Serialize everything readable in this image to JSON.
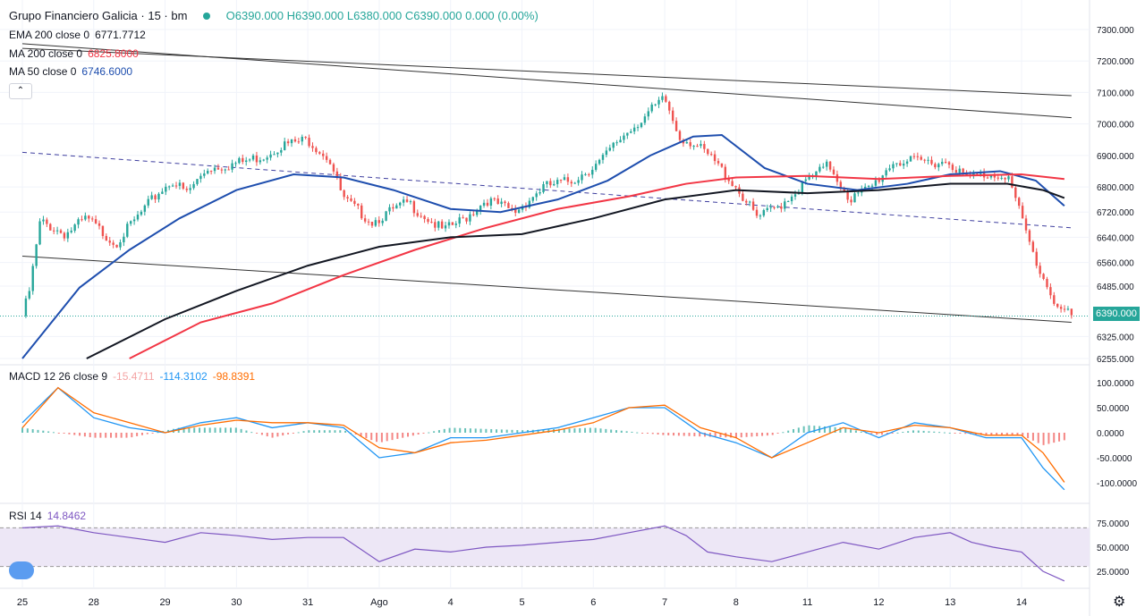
{
  "header": {
    "symbol": "Grupo Financiero Galicia · 15 · bm",
    "ohlc": "O6390.000 H6390.000 L6380.000 C6390.000 0.000 (0.00%)"
  },
  "legends": {
    "ema200": {
      "label": "EMA 200 close 0",
      "value": "6771.7712",
      "color": "#131722"
    },
    "ma200": {
      "label": "MA 200 close 0",
      "value": "6825.8000",
      "color": "#f23645"
    },
    "ma50": {
      "label": "MA 50 close 0",
      "value": "6746.6000",
      "color": "#1e4eae"
    },
    "macd": {
      "label": "MACD 12 26 close 9",
      "hist": "-15.4711",
      "macd": "-114.3102",
      "signal": "-98.8391"
    },
    "rsi": {
      "label": "RSI 14",
      "value": "14.8462"
    }
  },
  "controls": {
    "collapse": "⌃",
    "settings": "⚙"
  },
  "last_price": "6390.000",
  "colors": {
    "up": "#26a69a",
    "down": "#ef5350",
    "macd": "#2196f3",
    "signal": "#ff6d00",
    "rsi": "#7e57c2"
  },
  "chart_data": [
    {
      "type": "candlestick",
      "title": "Grupo Financiero Galicia · 15 · bm",
      "x_ticks": [
        "25",
        "28",
        "29",
        "30",
        "31",
        "Ago",
        "4",
        "5",
        "6",
        "7",
        "8",
        "11",
        "12",
        "13",
        "14"
      ],
      "y_ticks": [
        "7300.000",
        "7200.000",
        "7100.000",
        "7000.000",
        "6900.000",
        "6800.000",
        "6720.000",
        "6640.000",
        "6560.000",
        "6485.000",
        "6325.000",
        "6255.000"
      ],
      "close_path": [
        [
          0,
          6390
        ],
        [
          0.1,
          6470
        ],
        [
          0.25,
          6690
        ],
        [
          0.6,
          6650
        ],
        [
          0.9,
          6700
        ],
        [
          1.1,
          6660
        ],
        [
          1.3,
          6620
        ],
        [
          1.6,
          6700
        ],
        [
          1.9,
          6780
        ],
        [
          2.1,
          6820
        ],
        [
          2.3,
          6780
        ],
        [
          2.6,
          6860
        ],
        [
          2.9,
          6870
        ],
        [
          3.1,
          6880
        ],
        [
          3.4,
          6900
        ],
        [
          3.6,
          6930
        ],
        [
          4.0,
          6950
        ],
        [
          4.3,
          6890
        ],
        [
          4.5,
          6760
        ],
        [
          4.9,
          6690
        ],
        [
          5.4,
          6750
        ],
        [
          5.9,
          6660
        ],
        [
          6.2,
          6700
        ],
        [
          6.5,
          6760
        ],
        [
          6.9,
          6720
        ],
        [
          7.3,
          6800
        ],
        [
          7.7,
          6820
        ],
        [
          8.1,
          6880
        ],
        [
          8.4,
          6960
        ],
        [
          8.8,
          7040
        ],
        [
          9.0,
          7080
        ],
        [
          9.2,
          6960
        ],
        [
          9.4,
          6940
        ],
        [
          9.7,
          6880
        ],
        [
          10.0,
          6800
        ],
        [
          10.3,
          6700
        ],
        [
          10.6,
          6740
        ],
        [
          11.0,
          6820
        ],
        [
          11.3,
          6870
        ],
        [
          11.6,
          6760
        ],
        [
          11.9,
          6800
        ],
        [
          12.2,
          6880
        ],
        [
          12.6,
          6880
        ],
        [
          13.0,
          6880
        ],
        [
          13.2,
          6830
        ],
        [
          13.5,
          6840
        ],
        [
          13.8,
          6840
        ],
        [
          14.0,
          6700
        ],
        [
          14.2,
          6560
        ],
        [
          14.5,
          6420
        ],
        [
          14.7,
          6390
        ]
      ],
      "moving_averages": [
        {
          "name": "MA 50 close 0",
          "color": "#1e4eae",
          "points": [
            [
              0,
              6255
            ],
            [
              0.8,
              6480
            ],
            [
              1.5,
              6600
            ],
            [
              2.2,
              6700
            ],
            [
              3.0,
              6790
            ],
            [
              3.8,
              6840
            ],
            [
              4.5,
              6830
            ],
            [
              5.2,
              6790
            ],
            [
              6.0,
              6730
            ],
            [
              6.7,
              6720
            ],
            [
              7.5,
              6760
            ],
            [
              8.2,
              6820
            ],
            [
              8.8,
              6900
            ],
            [
              9.4,
              6960
            ],
            [
              9.8,
              6965
            ],
            [
              10.4,
              6860
            ],
            [
              11.0,
              6810
            ],
            [
              11.7,
              6790
            ],
            [
              12.4,
              6810
            ],
            [
              13.0,
              6840
            ],
            [
              13.7,
              6850
            ],
            [
              14.2,
              6820
            ],
            [
              14.6,
              6740
            ]
          ]
        },
        {
          "name": "MA 200 close 0",
          "color": "#f23645",
          "points": [
            [
              1.5,
              6255
            ],
            [
              2.5,
              6370
            ],
            [
              3.5,
              6430
            ],
            [
              4.5,
              6520
            ],
            [
              5.5,
              6600
            ],
            [
              6.5,
              6670
            ],
            [
              7.5,
              6730
            ],
            [
              8.5,
              6770
            ],
            [
              9.3,
              6810
            ],
            [
              10.0,
              6830
            ],
            [
              11.0,
              6835
            ],
            [
              12.0,
              6825
            ],
            [
              13.0,
              6835
            ],
            [
              14.0,
              6840
            ],
            [
              14.6,
              6825
            ]
          ]
        },
        {
          "name": "EMA 200 close 0",
          "color": "#131722",
          "points": [
            [
              0.9,
              6255
            ],
            [
              2.0,
              6380
            ],
            [
              3.0,
              6470
            ],
            [
              4.0,
              6550
            ],
            [
              5.0,
              6610
            ],
            [
              6.0,
              6640
            ],
            [
              7.0,
              6650
            ],
            [
              8.0,
              6700
            ],
            [
              9.0,
              6760
            ],
            [
              10.0,
              6790
            ],
            [
              11.0,
              6780
            ],
            [
              12.0,
              6790
            ],
            [
              13.0,
              6810
            ],
            [
              13.8,
              6810
            ],
            [
              14.3,
              6790
            ],
            [
              14.6,
              6765
            ]
          ]
        }
      ],
      "trendlines": [
        {
          "style": "solid",
          "points": [
            [
              0,
              7240
            ],
            [
              14.7,
              7090
            ]
          ]
        },
        {
          "style": "solid",
          "points": [
            [
              0,
              7255
            ],
            [
              14.7,
              7020
            ]
          ]
        },
        {
          "style": "dashed",
          "points": [
            [
              0,
              6910
            ],
            [
              14.7,
              6670
            ]
          ]
        },
        {
          "style": "solid",
          "points": [
            [
              0,
              6580
            ],
            [
              14.7,
              6370
            ]
          ]
        }
      ]
    },
    {
      "type": "line",
      "title": "MACD 12 26 close 9",
      "y_ticks": [
        "100.0000",
        "50.0000",
        "0.0000",
        "-50.0000",
        "-100.0000"
      ],
      "series": [
        {
          "name": "MACD",
          "values": [
            [
              0,
              20
            ],
            [
              0.5,
              90
            ],
            [
              1,
              30
            ],
            [
              1.5,
              10
            ],
            [
              2,
              0
            ],
            [
              2.5,
              20
            ],
            [
              3,
              30
            ],
            [
              3.5,
              10
            ],
            [
              4,
              20
            ],
            [
              4.5,
              10
            ],
            [
              5,
              -50
            ],
            [
              5.5,
              -40
            ],
            [
              6,
              -10
            ],
            [
              6.5,
              -10
            ],
            [
              7,
              0
            ],
            [
              7.5,
              10
            ],
            [
              8,
              30
            ],
            [
              8.5,
              50
            ],
            [
              9,
              50
            ],
            [
              9.5,
              0
            ],
            [
              10,
              -20
            ],
            [
              10.5,
              -50
            ],
            [
              11,
              0
            ],
            [
              11.5,
              20
            ],
            [
              12,
              -10
            ],
            [
              12.5,
              20
            ],
            [
              13,
              10
            ],
            [
              13.5,
              -10
            ],
            [
              14,
              -10
            ],
            [
              14.3,
              -70
            ],
            [
              14.6,
              -114
            ]
          ]
        },
        {
          "name": "Signal",
          "values": [
            [
              0,
              10
            ],
            [
              0.5,
              90
            ],
            [
              1,
              40
            ],
            [
              1.5,
              20
            ],
            [
              2,
              0
            ],
            [
              2.5,
              15
            ],
            [
              3,
              25
            ],
            [
              3.5,
              20
            ],
            [
              4,
              20
            ],
            [
              4.5,
              15
            ],
            [
              5,
              -30
            ],
            [
              5.5,
              -40
            ],
            [
              6,
              -20
            ],
            [
              6.5,
              -15
            ],
            [
              7,
              -5
            ],
            [
              7.5,
              5
            ],
            [
              8,
              20
            ],
            [
              8.5,
              50
            ],
            [
              9,
              55
            ],
            [
              9.5,
              10
            ],
            [
              10,
              -10
            ],
            [
              10.5,
              -50
            ],
            [
              11,
              -20
            ],
            [
              11.5,
              10
            ],
            [
              12,
              0
            ],
            [
              12.5,
              15
            ],
            [
              13,
              10
            ],
            [
              13.5,
              -5
            ],
            [
              14,
              -5
            ],
            [
              14.3,
              -40
            ],
            [
              14.6,
              -99
            ]
          ]
        }
      ],
      "histogram": {
        "color_pos": "#26a69a",
        "color_neg": "#ef5350",
        "values": [
          [
            0,
            10
          ],
          [
            1,
            -10
          ],
          [
            1.5,
            -10
          ],
          [
            2.2,
            10
          ],
          [
            3,
            10
          ],
          [
            3.5,
            -10
          ],
          [
            4,
            5
          ],
          [
            4.5,
            5
          ],
          [
            5,
            -20
          ],
          [
            5.5,
            -5
          ],
          [
            6,
            10
          ],
          [
            7,
            5
          ],
          [
            8,
            10
          ],
          [
            9,
            -5
          ],
          [
            10,
            -10
          ],
          [
            10.5,
            -5
          ],
          [
            11,
            15
          ],
          [
            11.5,
            10
          ],
          [
            12,
            -5
          ],
          [
            12.5,
            5
          ],
          [
            13,
            0
          ],
          [
            13.5,
            -5
          ],
          [
            14,
            -5
          ],
          [
            14.3,
            -25
          ],
          [
            14.6,
            -15
          ]
        ]
      }
    },
    {
      "type": "line",
      "title": "RSI 14",
      "y_ticks": [
        "75.0000",
        "50.0000",
        "25.0000"
      ],
      "bands": [
        70,
        30
      ],
      "series": [
        {
          "name": "RSI",
          "values": [
            [
              0,
              70
            ],
            [
              0.5,
              72
            ],
            [
              1,
              65
            ],
            [
              1.5,
              60
            ],
            [
              2,
              55
            ],
            [
              2.5,
              65
            ],
            [
              3,
              62
            ],
            [
              3.5,
              58
            ],
            [
              4,
              60
            ],
            [
              4.5,
              60
            ],
            [
              5,
              35
            ],
            [
              5.5,
              48
            ],
            [
              6,
              45
            ],
            [
              6.5,
              50
            ],
            [
              7,
              52
            ],
            [
              7.5,
              55
            ],
            [
              8,
              58
            ],
            [
              8.5,
              65
            ],
            [
              9,
              72
            ],
            [
              9.3,
              62
            ],
            [
              9.6,
              45
            ],
            [
              10,
              40
            ],
            [
              10.5,
              35
            ],
            [
              11,
              45
            ],
            [
              11.5,
              55
            ],
            [
              12,
              48
            ],
            [
              12.5,
              60
            ],
            [
              13,
              65
            ],
            [
              13.3,
              55
            ],
            [
              13.6,
              50
            ],
            [
              14,
              45
            ],
            [
              14.3,
              25
            ],
            [
              14.6,
              15
            ]
          ]
        }
      ]
    }
  ]
}
